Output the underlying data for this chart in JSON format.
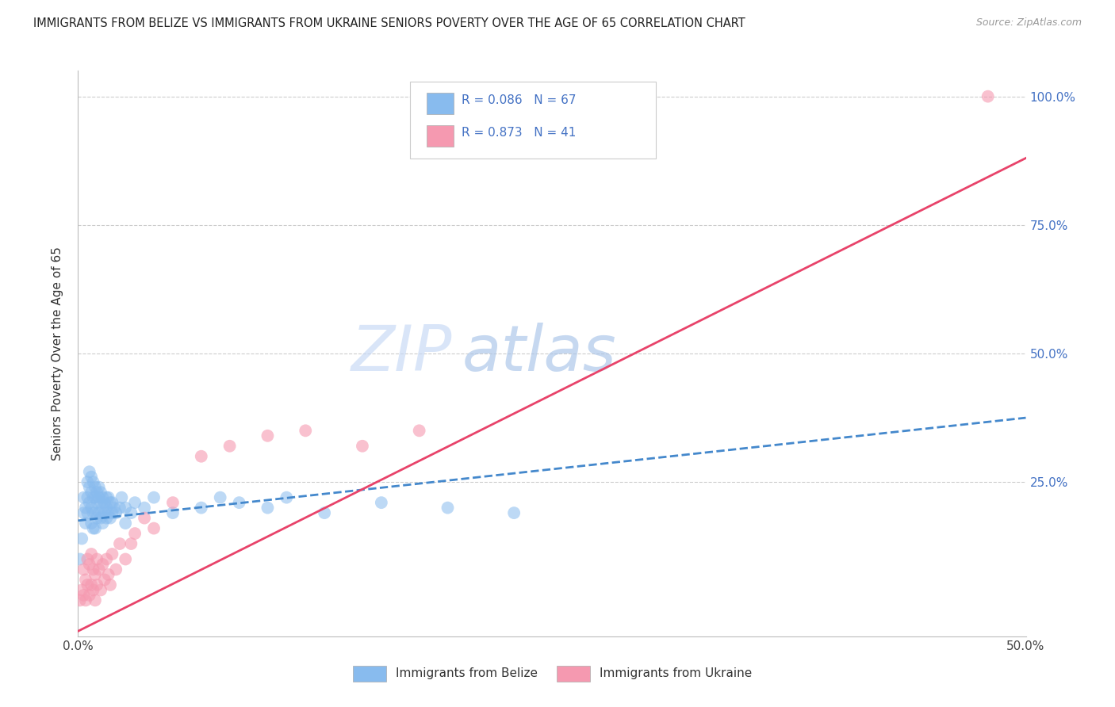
{
  "title": "IMMIGRANTS FROM BELIZE VS IMMIGRANTS FROM UKRAINE SENIORS POVERTY OVER THE AGE OF 65 CORRELATION CHART",
  "source": "Source: ZipAtlas.com",
  "ylabel": "Seniors Poverty Over the Age of 65",
  "belize_R": 0.086,
  "belize_N": 67,
  "ukraine_R": 0.873,
  "ukraine_N": 41,
  "belize_color": "#88bbee",
  "ukraine_color": "#f599b0",
  "belize_line_color": "#4488cc",
  "ukraine_line_color": "#e8436a",
  "watermark_zip": "ZIP",
  "watermark_atlas": "atlas",
  "xlim": [
    0.0,
    0.5
  ],
  "ylim": [
    -0.05,
    1.05
  ],
  "belize_line_x0": 0.0,
  "belize_line_y0": 0.175,
  "belize_line_x1": 0.5,
  "belize_line_y1": 0.375,
  "ukraine_line_x0": 0.0,
  "ukraine_line_y0": -0.04,
  "ukraine_line_x1": 0.5,
  "ukraine_line_y1": 0.88,
  "belize_x": [
    0.001,
    0.002,
    0.003,
    0.003,
    0.004,
    0.004,
    0.005,
    0.005,
    0.005,
    0.006,
    0.006,
    0.006,
    0.007,
    0.007,
    0.007,
    0.007,
    0.008,
    0.008,
    0.008,
    0.008,
    0.009,
    0.009,
    0.009,
    0.009,
    0.01,
    0.01,
    0.01,
    0.011,
    0.011,
    0.011,
    0.012,
    0.012,
    0.012,
    0.013,
    0.013,
    0.013,
    0.014,
    0.014,
    0.015,
    0.015,
    0.015,
    0.016,
    0.016,
    0.017,
    0.017,
    0.018,
    0.018,
    0.019,
    0.02,
    0.022,
    0.023,
    0.025,
    0.025,
    0.028,
    0.03,
    0.035,
    0.04,
    0.05,
    0.065,
    0.075,
    0.085,
    0.1,
    0.11,
    0.13,
    0.16,
    0.195,
    0.23
  ],
  "belize_y": [
    0.1,
    0.14,
    0.22,
    0.19,
    0.2,
    0.17,
    0.25,
    0.22,
    0.19,
    0.27,
    0.24,
    0.21,
    0.26,
    0.23,
    0.2,
    0.17,
    0.25,
    0.22,
    0.19,
    0.16,
    0.24,
    0.22,
    0.19,
    0.16,
    0.23,
    0.21,
    0.18,
    0.24,
    0.22,
    0.19,
    0.23,
    0.21,
    0.18,
    0.22,
    0.2,
    0.17,
    0.21,
    0.19,
    0.22,
    0.2,
    0.18,
    0.22,
    0.19,
    0.21,
    0.18,
    0.21,
    0.19,
    0.2,
    0.19,
    0.2,
    0.22,
    0.2,
    0.17,
    0.19,
    0.21,
    0.2,
    0.22,
    0.19,
    0.2,
    0.22,
    0.21,
    0.2,
    0.22,
    0.19,
    0.21,
    0.2,
    0.19
  ],
  "ukraine_x": [
    0.001,
    0.002,
    0.003,
    0.003,
    0.004,
    0.004,
    0.005,
    0.005,
    0.006,
    0.006,
    0.007,
    0.007,
    0.008,
    0.008,
    0.009,
    0.009,
    0.01,
    0.01,
    0.011,
    0.012,
    0.013,
    0.014,
    0.015,
    0.016,
    0.017,
    0.018,
    0.02,
    0.022,
    0.025,
    0.028,
    0.03,
    0.035,
    0.04,
    0.05,
    0.065,
    0.08,
    0.1,
    0.12,
    0.15,
    0.18,
    0.48
  ],
  "ukraine_y": [
    0.02,
    0.04,
    0.08,
    0.03,
    0.06,
    0.02,
    0.1,
    0.05,
    0.09,
    0.03,
    0.11,
    0.05,
    0.08,
    0.04,
    0.07,
    0.02,
    0.1,
    0.05,
    0.08,
    0.04,
    0.09,
    0.06,
    0.1,
    0.07,
    0.05,
    0.11,
    0.08,
    0.13,
    0.1,
    0.13,
    0.15,
    0.18,
    0.16,
    0.21,
    0.3,
    0.32,
    0.34,
    0.35,
    0.32,
    0.35,
    1.0
  ]
}
